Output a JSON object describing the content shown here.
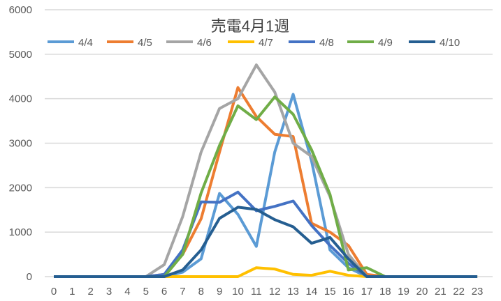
{
  "chart_data": {
    "type": "line",
    "title": "売電4月1週",
    "xlabel": "",
    "ylabel": "",
    "x": [
      0,
      1,
      2,
      3,
      4,
      5,
      6,
      7,
      8,
      9,
      10,
      11,
      12,
      13,
      14,
      15,
      16,
      17,
      18,
      19,
      20,
      21,
      22,
      23
    ],
    "ylim": [
      0,
      6000
    ],
    "yticks": [
      0,
      1000,
      2000,
      3000,
      4000,
      5000,
      6000
    ],
    "grid": true,
    "legend": "top",
    "series": [
      {
        "name": "4/4",
        "color": "#5B9BD5",
        "values": [
          0,
          0,
          0,
          0,
          0,
          0,
          0,
          100,
          400,
          1870,
          1400,
          680,
          2800,
          4100,
          2600,
          600,
          200,
          0,
          0,
          0,
          0,
          0,
          0,
          0
        ]
      },
      {
        "name": "4/5",
        "color": "#ED7D31",
        "values": [
          0,
          0,
          0,
          0,
          0,
          0,
          50,
          500,
          1300,
          2800,
          4250,
          3600,
          3200,
          3150,
          1200,
          1000,
          700,
          50,
          0,
          0,
          0,
          0,
          0,
          0
        ]
      },
      {
        "name": "4/6",
        "color": "#A5A5A5",
        "values": [
          0,
          0,
          0,
          0,
          0,
          0,
          270,
          1350,
          2800,
          3780,
          4000,
          4760,
          4150,
          3000,
          2700,
          1800,
          500,
          0,
          0,
          0,
          0,
          0,
          0,
          0
        ]
      },
      {
        "name": "4/7",
        "color": "#FFC000",
        "values": [
          0,
          0,
          0,
          0,
          0,
          0,
          0,
          0,
          0,
          0,
          0,
          200,
          170,
          50,
          30,
          120,
          30,
          0,
          0,
          0,
          0,
          0,
          0,
          0
        ]
      },
      {
        "name": "4/8",
        "color": "#4472C4",
        "values": [
          0,
          0,
          0,
          0,
          0,
          0,
          50,
          600,
          1680,
          1670,
          1900,
          1480,
          1580,
          1700,
          1150,
          700,
          300,
          0,
          0,
          0,
          0,
          0,
          0,
          0
        ]
      },
      {
        "name": "4/9",
        "color": "#70AD47",
        "values": [
          0,
          0,
          0,
          0,
          0,
          0,
          0,
          500,
          1880,
          2950,
          3840,
          3530,
          4040,
          3650,
          2850,
          1850,
          150,
          200,
          0,
          0,
          0,
          0,
          0,
          0
        ]
      },
      {
        "name": "4/10",
        "color": "#255E91",
        "values": [
          0,
          0,
          0,
          0,
          0,
          0,
          0,
          150,
          600,
          1310,
          1560,
          1510,
          1280,
          1120,
          750,
          880,
          400,
          0,
          0,
          0,
          0,
          0,
          0,
          0
        ]
      }
    ]
  }
}
